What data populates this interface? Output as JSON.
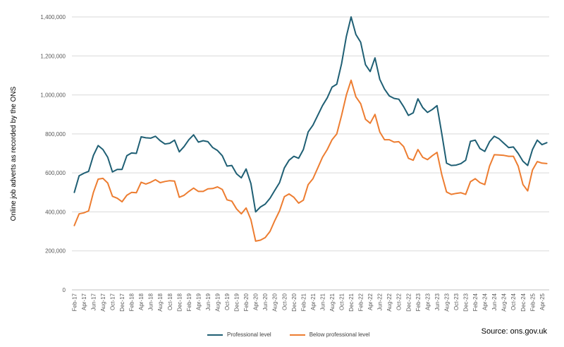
{
  "chart_data": {
    "type": "line",
    "ylabel": "Online job adverts as recorded by the ONS",
    "ylim": [
      0,
      1400000
    ],
    "yticks": [
      "0",
      "200,000",
      "400,000",
      "600,000",
      "800,000",
      "1,000,000",
      "1,200,000",
      "1,400,000"
    ],
    "x_tick_labels": [
      "Feb-17",
      "Apr-17",
      "Jun-17",
      "Aug-17",
      "Oct-17",
      "Dec-17",
      "Feb-18",
      "Apr-18",
      "Jun-18",
      "Aug-18",
      "Oct-18",
      "Dec-18",
      "Feb-19",
      "Apr-19",
      "Jun-19",
      "Aug-19",
      "Oct-19",
      "Dec-19",
      "Feb-20",
      "Apr-20",
      "Jun-20",
      "Aug-20",
      "Oct-20",
      "Dec-20",
      "Feb-21",
      "Apr-21",
      "Jun-21",
      "Aug-21",
      "Oct-21",
      "Dec-21",
      "Feb-22",
      "Apr-22",
      "Jun-22",
      "Aug-22",
      "Oct-22",
      "Dec-22",
      "Feb-23",
      "Apr-23",
      "Jun-23",
      "Aug-23",
      "Oct-23",
      "Dec-23",
      "Feb-24",
      "Apr-24",
      "Jun-24",
      "Aug-24",
      "Oct-24",
      "Dec-24",
      "Feb-25",
      "Apr-25"
    ],
    "grid": true,
    "series": [
      {
        "name": "Professional level",
        "color": "#1f5f74",
        "values": [
          500000,
          585000,
          598000,
          608000,
          690000,
          740000,
          720000,
          680000,
          605000,
          618000,
          618000,
          688000,
          702000,
          700000,
          785000,
          780000,
          778000,
          788000,
          765000,
          748000,
          752000,
          768000,
          708000,
          735000,
          770000,
          795000,
          758000,
          765000,
          760000,
          730000,
          715000,
          688000,
          635000,
          638000,
          595000,
          575000,
          620000,
          545000,
          400000,
          425000,
          440000,
          470000,
          510000,
          550000,
          625000,
          665000,
          685000,
          675000,
          720000,
          810000,
          845000,
          895000,
          945000,
          985000,
          1040000,
          1055000,
          1160000,
          1300000,
          1400000,
          1310000,
          1270000,
          1155000,
          1120000,
          1190000,
          1080000,
          1030000,
          995000,
          982000,
          978000,
          940000,
          895000,
          908000,
          980000,
          935000,
          910000,
          925000,
          945000,
          800000,
          650000,
          638000,
          640000,
          648000,
          665000,
          762000,
          768000,
          725000,
          710000,
          760000,
          788000,
          775000,
          752000,
          730000,
          733000,
          700000,
          660000,
          638000,
          720000,
          768000,
          745000,
          755000
        ]
      },
      {
        "name": "Below professional level",
        "color": "#ed7d31",
        "values": [
          330000,
          390000,
          395000,
          405000,
          500000,
          568000,
          572000,
          548000,
          480000,
          470000,
          452000,
          485000,
          500000,
          498000,
          552000,
          543000,
          552000,
          565000,
          550000,
          556000,
          560000,
          558000,
          475000,
          485000,
          505000,
          522000,
          505000,
          505000,
          518000,
          520000,
          528000,
          515000,
          462000,
          455000,
          415000,
          390000,
          420000,
          360000,
          250000,
          255000,
          268000,
          300000,
          355000,
          405000,
          478000,
          492000,
          475000,
          445000,
          460000,
          540000,
          570000,
          625000,
          680000,
          720000,
          770000,
          800000,
          895000,
          1000000,
          1075000,
          990000,
          955000,
          875000,
          855000,
          900000,
          810000,
          770000,
          770000,
          758000,
          760000,
          735000,
          675000,
          665000,
          720000,
          680000,
          668000,
          688000,
          705000,
          590000,
          502000,
          490000,
          495000,
          498000,
          490000,
          555000,
          570000,
          550000,
          540000,
          635000,
          693000,
          692000,
          690000,
          685000,
          685000,
          635000,
          540000,
          508000,
          615000,
          658000,
          650000,
          648000
        ]
      }
    ]
  },
  "source": "Source: ons.gov.uk"
}
